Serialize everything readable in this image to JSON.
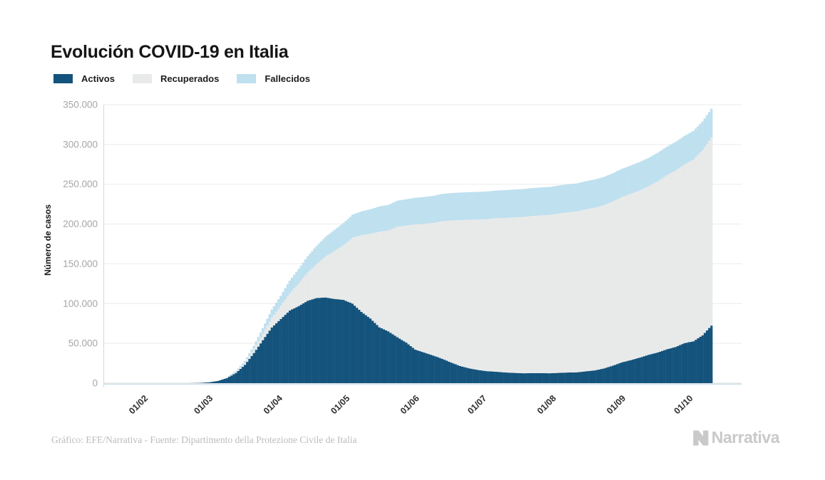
{
  "header": {
    "title": "Evolución COVID-19 en Italia"
  },
  "footer": {
    "credit": "Gráfico: EFE/Narrativa - Fuente: Dipartimento della Protezione Civile de Italia",
    "brand": "Narrativa"
  },
  "icons": {
    "brand_mark": "narrativa-n-logo"
  },
  "colors": {
    "activos": "#14537C",
    "recuperados": "#E8EAEA",
    "fallecidos": "#BEE0EF",
    "gridline": "#ebebeb",
    "axis_line": "#d9d9d9",
    "baseline": "#cfe2ee",
    "y_tick_text": "#a6a6a6",
    "x_tick_text": "#2e2e2e"
  },
  "chart_data": {
    "type": "area",
    "stacked": true,
    "title": "Evolución COVID-19 en Italia",
    "xlabel": "",
    "ylabel": "Número de casos",
    "ylim": [
      0,
      350000
    ],
    "grid": "horizontal",
    "legend_position": "top",
    "y_ticks": [
      0,
      50000,
      100000,
      150000,
      200000,
      250000,
      300000,
      350000
    ],
    "y_tick_labels": [
      "0",
      "50.000",
      "100.000",
      "150.000",
      "200.000",
      "250.000",
      "300.000",
      "350.000"
    ],
    "x_tick_labels": [
      "01/02",
      "01/03",
      "01/04",
      "01/05",
      "01/06",
      "01/07",
      "01/08",
      "01/09",
      "01/10"
    ],
    "x_tick_days": [
      0,
      29,
      60,
      90,
      121,
      151,
      182,
      213,
      243
    ],
    "series": [
      {
        "name": "Activos",
        "key": "activos",
        "color": "#14537C"
      },
      {
        "name": "Recuperados",
        "key": "recuperados",
        "color": "#E8EAEA"
      },
      {
        "name": "Fallecidos",
        "key": "fallecidos",
        "color": "#BEE0EF"
      }
    ],
    "points": [
      {
        "date": "21/02",
        "day": 20,
        "activos": 76,
        "recuperados": 1,
        "fallecidos": 2
      },
      {
        "date": "25/02",
        "day": 24,
        "activos": 311,
        "recuperados": 3,
        "fallecidos": 11
      },
      {
        "date": "29/02",
        "day": 28,
        "activos": 1049,
        "recuperados": 50,
        "fallecidos": 29
      },
      {
        "date": "04/03",
        "day": 32,
        "activos": 2706,
        "recuperados": 276,
        "fallecidos": 107
      },
      {
        "date": "08/03",
        "day": 36,
        "activos": 6387,
        "recuperados": 622,
        "fallecidos": 366
      },
      {
        "date": "12/03",
        "day": 40,
        "activos": 12839,
        "recuperados": 1258,
        "fallecidos": 1016
      },
      {
        "date": "16/03",
        "day": 44,
        "activos": 23073,
        "recuperados": 2749,
        "fallecidos": 2158
      },
      {
        "date": "20/03",
        "day": 48,
        "activos": 37860,
        "recuperados": 5129,
        "fallecidos": 4032
      },
      {
        "date": "24/03",
        "day": 52,
        "activos": 54030,
        "recuperados": 8326,
        "fallecidos": 6820
      },
      {
        "date": "28/03",
        "day": 56,
        "activos": 70065,
        "recuperados": 12384,
        "fallecidos": 10023
      },
      {
        "date": "01/04",
        "day": 60,
        "activos": 80572,
        "recuperados": 16847,
        "fallecidos": 12428
      },
      {
        "date": "05/04",
        "day": 64,
        "activos": 91246,
        "recuperados": 21815,
        "fallecidos": 15887
      },
      {
        "date": "09/04",
        "day": 68,
        "activos": 96877,
        "recuperados": 28470,
        "fallecidos": 18279
      },
      {
        "date": "13/04",
        "day": 72,
        "activos": 103616,
        "recuperados": 35435,
        "fallecidos": 20465
      },
      {
        "date": "17/04",
        "day": 76,
        "activos": 106962,
        "recuperados": 42727,
        "fallecidos": 22745
      },
      {
        "date": "21/04",
        "day": 80,
        "activos": 107709,
        "recuperados": 51600,
        "fallecidos": 24648
      },
      {
        "date": "25/04",
        "day": 84,
        "activos": 105847,
        "recuperados": 60498,
        "fallecidos": 26384
      },
      {
        "date": "29/04",
        "day": 88,
        "activos": 104657,
        "recuperados": 68941,
        "fallecidos": 27682
      },
      {
        "date": "03/05",
        "day": 92,
        "activos": 99980,
        "recuperados": 82879,
        "fallecidos": 28884
      },
      {
        "date": "07/05",
        "day": 96,
        "activos": 89624,
        "recuperados": 96276,
        "fallecidos": 29958
      },
      {
        "date": "11/05",
        "day": 100,
        "activos": 81266,
        "recuperados": 106587,
        "fallecidos": 30739
      },
      {
        "date": "15/05",
        "day": 104,
        "activos": 70187,
        "recuperados": 120205,
        "fallecidos": 31610
      },
      {
        "date": "19/05",
        "day": 108,
        "activos": 65129,
        "recuperados": 126798,
        "fallecidos": 32169
      },
      {
        "date": "23/05",
        "day": 112,
        "activos": 57752,
        "recuperados": 138840,
        "fallecidos": 32735
      },
      {
        "date": "27/05",
        "day": 116,
        "activos": 50966,
        "recuperados": 147101,
        "fallecidos": 33072
      },
      {
        "date": "31/05",
        "day": 120,
        "activos": 42075,
        "recuperados": 157507,
        "fallecidos": 33415
      },
      {
        "date": "04/06",
        "day": 124,
        "activos": 38429,
        "recuperados": 161895,
        "fallecidos": 33689
      },
      {
        "date": "08/06",
        "day": 128,
        "activos": 34730,
        "recuperados": 166646,
        "fallecidos": 33964
      },
      {
        "date": "12/06",
        "day": 132,
        "activos": 30637,
        "recuperados": 173085,
        "fallecidos": 34223
      },
      {
        "date": "16/06",
        "day": 136,
        "activos": 25909,
        "recuperados": 178526,
        "fallecidos": 34448
      },
      {
        "date": "20/06",
        "day": 140,
        "activos": 21543,
        "recuperados": 183426,
        "fallecidos": 34610
      },
      {
        "date": "24/06",
        "day": 144,
        "activos": 18655,
        "recuperados": 186725,
        "fallecidos": 34708
      },
      {
        "date": "28/06",
        "day": 148,
        "activos": 16496,
        "recuperados": 189196,
        "fallecidos": 34738
      },
      {
        "date": "02/07",
        "day": 152,
        "activos": 15060,
        "recuperados": 191083,
        "fallecidos": 34818
      },
      {
        "date": "06/07",
        "day": 156,
        "activos": 14396,
        "recuperados": 192815,
        "fallecidos": 34869
      },
      {
        "date": "10/07",
        "day": 160,
        "activos": 13428,
        "recuperados": 194273,
        "fallecidos": 34938
      },
      {
        "date": "14/07",
        "day": 164,
        "activos": 12919,
        "recuperados": 195441,
        "fallecidos": 34984
      },
      {
        "date": "18/07",
        "day": 168,
        "activos": 12404,
        "recuperados": 196480,
        "fallecidos": 35042
      },
      {
        "date": "22/07",
        "day": 172,
        "activos": 12609,
        "recuperados": 197431,
        "fallecidos": 35073
      },
      {
        "date": "26/07",
        "day": 176,
        "activos": 12565,
        "recuperados": 198320,
        "fallecidos": 35107
      },
      {
        "date": "30/07",
        "day": 180,
        "activos": 12422,
        "recuperados": 199031,
        "fallecidos": 35132
      },
      {
        "date": "03/08",
        "day": 184,
        "activos": 12924,
        "recuperados": 200460,
        "fallecidos": 35166
      },
      {
        "date": "07/08",
        "day": 188,
        "activos": 13368,
        "recuperados": 201323,
        "fallecidos": 35190
      },
      {
        "date": "11/08",
        "day": 192,
        "activos": 13561,
        "recuperados": 202248,
        "fallecidos": 35215
      },
      {
        "date": "15/08",
        "day": 196,
        "activos": 14867,
        "recuperados": 203506,
        "fallecidos": 35392
      },
      {
        "date": "19/08",
        "day": 200,
        "activos": 16014,
        "recuperados": 204506,
        "fallecidos": 35418
      },
      {
        "date": "23/08",
        "day": 204,
        "activos": 18438,
        "recuperados": 205203,
        "fallecidos": 35437
      },
      {
        "date": "27/08",
        "day": 208,
        "activos": 21932,
        "recuperados": 206329,
        "fallecidos": 35458
      },
      {
        "date": "31/08",
        "day": 212,
        "activos": 26078,
        "recuperados": 207653,
        "fallecidos": 35477
      },
      {
        "date": "04/09",
        "day": 216,
        "activos": 28915,
        "recuperados": 209027,
        "fallecidos": 35541
      },
      {
        "date": "08/09",
        "day": 220,
        "activos": 32078,
        "recuperados": 210238,
        "fallecidos": 35577
      },
      {
        "date": "12/09",
        "day": 224,
        "activos": 35668,
        "recuperados": 211885,
        "fallecidos": 35610
      },
      {
        "date": "16/09",
        "day": 228,
        "activos": 38509,
        "recuperados": 215265,
        "fallecidos": 35668
      },
      {
        "date": "20/09",
        "day": 232,
        "activos": 42457,
        "recuperados": 218703,
        "fallecidos": 35724
      },
      {
        "date": "24/09",
        "day": 236,
        "activos": 45489,
        "recuperados": 221762,
        "fallecidos": 35781
      },
      {
        "date": "28/09",
        "day": 240,
        "activos": 50323,
        "recuperados": 224621,
        "fallecidos": 35851
      },
      {
        "date": "02/10",
        "day": 244,
        "activos": 52647,
        "recuperados": 228453,
        "fallecidos": 35941
      },
      {
        "date": "06/10",
        "day": 248,
        "activos": 60134,
        "recuperados": 232681,
        "fallecidos": 36030
      },
      {
        "date": "10/10",
        "day": 252,
        "activos": 72380,
        "recuperados": 236363,
        "fallecidos": 36140
      }
    ]
  }
}
